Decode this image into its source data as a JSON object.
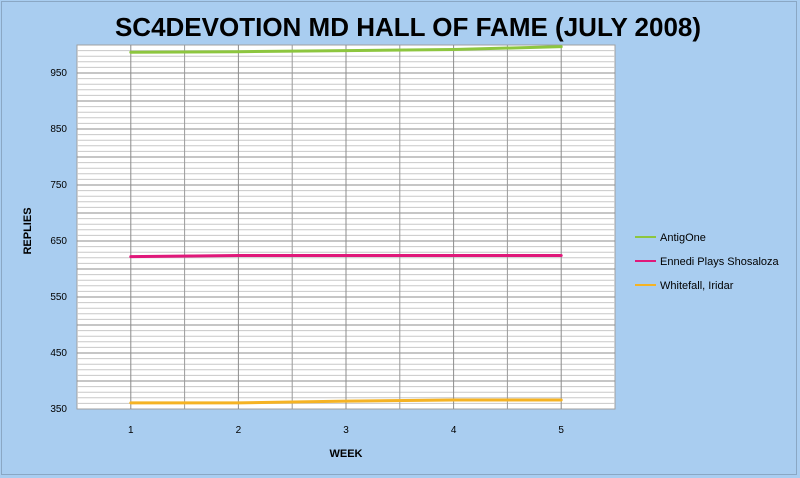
{
  "chart_data": {
    "type": "line",
    "title": "SC4DEVOTION MD HALL OF FAME (JULY 2008)",
    "xlabel": "WEEK",
    "ylabel": "REPLIES",
    "categories": [
      "1",
      "2",
      "3",
      "4",
      "5"
    ],
    "ylim": [
      350,
      1000
    ],
    "yticks": [
      "350",
      "450",
      "550",
      "650",
      "750",
      "850",
      "950"
    ],
    "grid": true,
    "legend_position": "right",
    "series": [
      {
        "name": "AntigOne",
        "color": "#8dc63f",
        "values": [
          987,
          988,
          990,
          992,
          997
        ]
      },
      {
        "name": "Ennedi Plays  Shosaloza",
        "color": "#e0187a",
        "values": [
          622,
          624,
          624,
          624,
          624
        ]
      },
      {
        "name": "Whitefall, Iridar",
        "color": "#f5b324",
        "values": [
          361,
          361,
          364,
          366,
          366
        ]
      }
    ]
  }
}
